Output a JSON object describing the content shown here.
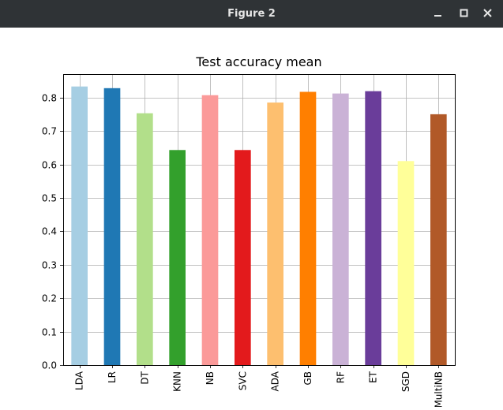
{
  "window": {
    "title": "Figure 2",
    "buttons": [
      "minimize-icon",
      "maximize-icon",
      "close-icon"
    ]
  },
  "chart_data": {
    "type": "bar",
    "title": "Test accuracy mean",
    "xlabel": "",
    "ylabel": "",
    "categories": [
      "LDA",
      "LR",
      "DT",
      "KNN",
      "NB",
      "SVC",
      "ADA",
      "GB",
      "RF",
      "ET",
      "SGD",
      "MultiNB"
    ],
    "values": [
      0.833,
      0.828,
      0.753,
      0.643,
      0.807,
      0.643,
      0.785,
      0.817,
      0.812,
      0.819,
      0.61,
      0.75
    ],
    "colors": [
      "#a6cee3",
      "#1f78b4",
      "#b2df8a",
      "#33a02c",
      "#fb9a99",
      "#e31a1c",
      "#fdbf6f",
      "#ff7f00",
      "#cab2d6",
      "#6a3d9a",
      "#ffff99",
      "#b15928"
    ],
    "ylim": [
      0,
      0.87
    ],
    "yticks": [
      0.0,
      0.1,
      0.2,
      0.3,
      0.4,
      0.5,
      0.6,
      0.7,
      0.8
    ],
    "ytick_labels": [
      "0.0",
      "0.1",
      "0.2",
      "0.3",
      "0.4",
      "0.5",
      "0.6",
      "0.7",
      "0.8"
    ],
    "grid": true,
    "legend": "none"
  }
}
